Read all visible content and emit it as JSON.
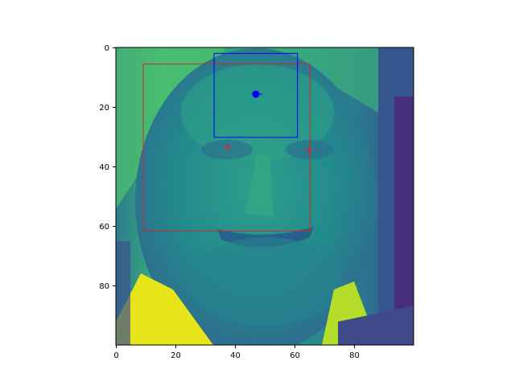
{
  "image": {
    "description_colormap": "viridis",
    "extent": {
      "x": [
        0,
        100
      ],
      "y": [
        0,
        100
      ]
    }
  },
  "axes": {
    "x_ticks": [
      "0",
      "20",
      "40",
      "60",
      "80"
    ],
    "y_ticks": [
      "0",
      "20",
      "40",
      "60",
      "80"
    ],
    "x_tick_values": [
      0,
      20,
      40,
      60,
      80
    ],
    "y_tick_values": [
      0,
      20,
      40,
      60,
      80
    ]
  },
  "overlays": {
    "face_box": {
      "color": "#d62728",
      "x0": 9.2,
      "y0": 5.6,
      "x1": 65.2,
      "y1": 61.7
    },
    "inner_box": {
      "color": "#0000ff",
      "x0": 33.0,
      "y0": 2.0,
      "x1": 61.0,
      "y1": 30.2
    },
    "blue_point": {
      "color": "#0000ff",
      "x": 47.0,
      "y": 15.7
    },
    "red_markers": [
      {
        "color": "#d62728",
        "x": 37.5,
        "y": 33.5
      },
      {
        "color": "#d62728",
        "x": 65.0,
        "y": 34.5
      }
    ]
  }
}
